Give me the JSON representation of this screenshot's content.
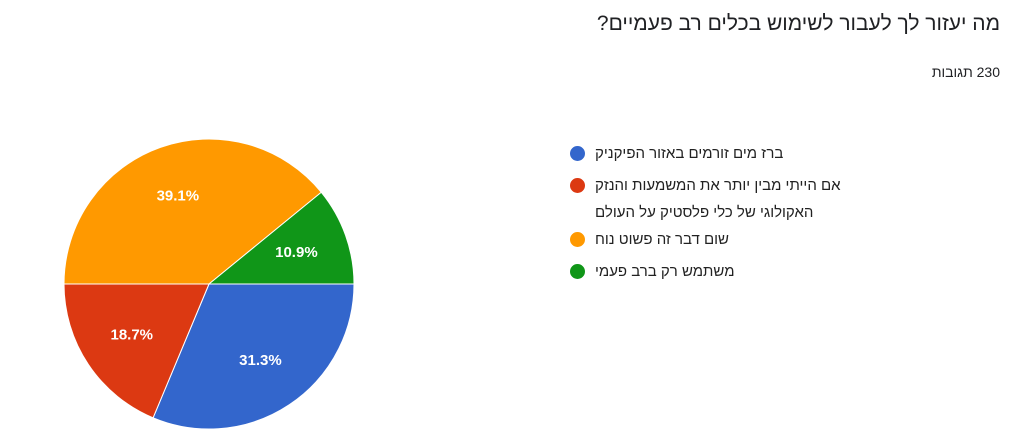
{
  "chart_data": {
    "type": "pie",
    "title": "מה יעזור לך לעבור לשימוש בכלים רב פעמיים?",
    "subtitle": "230 תגובות",
    "categories": [
      "ברז מים זורמים באזור הפיקניק",
      "אם הייתי מבין יותר את המשמעות והנזק האקולוגי של כלי פלסטיק על העולם",
      "שום דבר זה פשוט נוח",
      "משתמש רק ברב פעמי"
    ],
    "values": [
      31.3,
      18.7,
      39.1,
      10.9
    ],
    "value_labels": [
      "31.3%",
      "18.7%",
      "39.1%",
      "10.9%"
    ],
    "colors": [
      "#3366cc",
      "#dc3912",
      "#ff9900",
      "#109618"
    ]
  }
}
